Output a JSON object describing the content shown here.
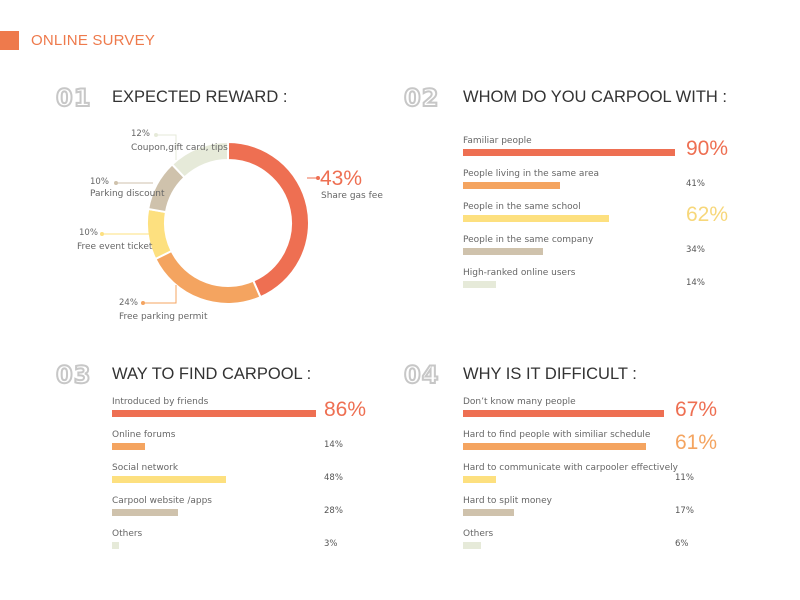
{
  "header": {
    "title": "ONLINE SURVEY",
    "accent": "#ee7a4c"
  },
  "sections": [
    {
      "number": "01",
      "title": "EXPECTED REWARD :"
    },
    {
      "number": "02",
      "title": "WHOM DO YOU CARPOOL WITH :"
    },
    {
      "number": "03",
      "title": "WAY TO FIND CARPOOL :"
    },
    {
      "number": "04",
      "title": "WHY IS IT DIFFICULT :"
    }
  ],
  "chart_data": [
    {
      "type": "pie",
      "title": "EXPECTED REWARD :",
      "slices": [
        {
          "label": "Share gas fee",
          "pct_text": "43%",
          "value": 43,
          "color": "#ee6f52"
        },
        {
          "label": "Free parking permit",
          "pct_text": "24%",
          "value": 24,
          "color": "#f4a460"
        },
        {
          "label": "Free event ticket",
          "pct_text": "10%",
          "value": 10,
          "color": "#fde07f"
        },
        {
          "label": "Parking discount",
          "pct_text": "10%",
          "value": 10,
          "color": "#cfc2ac"
        },
        {
          "label": "Coupon,gift card, tips",
          "pct_text": "12%",
          "value": 12,
          "color": "#e6ead9"
        }
      ]
    },
    {
      "type": "bar",
      "title": "WHOM DO YOU CARPOOL WITH :",
      "bars": [
        {
          "label": "Familiar people",
          "value": 90,
          "pct_text": "90%",
          "color": "#ee6f52",
          "big": true
        },
        {
          "label": "People living in the same area",
          "value": 41,
          "pct_text": "41%",
          "color": "#f4a460",
          "big": false
        },
        {
          "label": "People in the same school",
          "value": 62,
          "pct_text": "62%",
          "color": "#fde07f",
          "big": true
        },
        {
          "label": "People in the same company",
          "value": 34,
          "pct_text": "34%",
          "color": "#cfc2ac",
          "big": false
        },
        {
          "label": "High-ranked online users",
          "value": 14,
          "pct_text": "14%",
          "color": "#e6ead9",
          "big": false
        }
      ]
    },
    {
      "type": "bar",
      "title": "WAY TO FIND CARPOOL :",
      "bars": [
        {
          "label": "Introduced by friends",
          "value": 86,
          "pct_text": "86%",
          "color": "#ee6f52",
          "big": true
        },
        {
          "label": "Online forums",
          "value": 14,
          "pct_text": "14%",
          "color": "#f4a460",
          "big": false
        },
        {
          "label": "Social network",
          "value": 48,
          "pct_text": "48%",
          "color": "#fde07f",
          "big": false
        },
        {
          "label": "Carpool website /apps",
          "value": 28,
          "pct_text": "28%",
          "color": "#cfc2ac",
          "big": false
        },
        {
          "label": "Others",
          "value": 3,
          "pct_text": "3%",
          "color": "#e6ead9",
          "big": false
        }
      ]
    },
    {
      "type": "bar",
      "title": "WHY IS IT DIFFICULT :",
      "bars": [
        {
          "label": "Don’t know many people",
          "value": 67,
          "pct_text": "67%",
          "color": "#ee6f52",
          "big": true
        },
        {
          "label": "Hard to find people with similiar schedule",
          "value": 61,
          "pct_text": "61%",
          "color": "#f4a460",
          "big": true
        },
        {
          "label": "Hard to communicate with carpooler effectively",
          "value": 11,
          "pct_text": "11%",
          "color": "#fde07f",
          "big": false
        },
        {
          "label": "Hard to split money",
          "value": 17,
          "pct_text": "17%",
          "color": "#cfc2ac",
          "big": false
        },
        {
          "label": "Others",
          "value": 6,
          "pct_text": "6%",
          "color": "#e6ead9",
          "big": false
        }
      ]
    }
  ]
}
